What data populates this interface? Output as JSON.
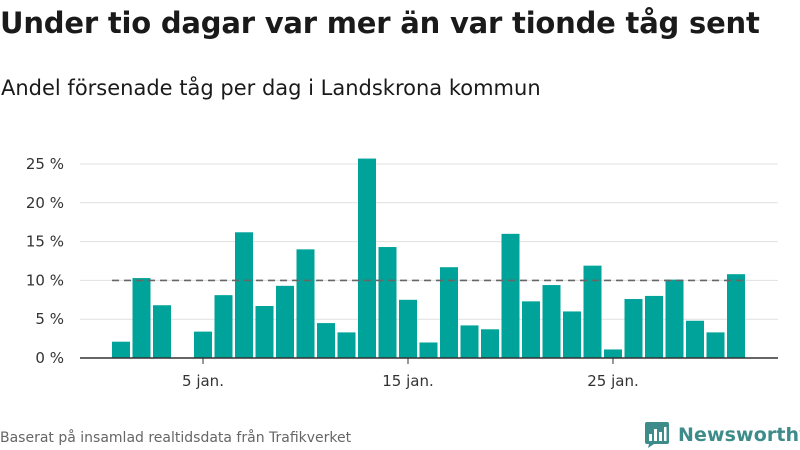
{
  "title": "Under tio dagar var mer än var tionde tåg sent",
  "subtitle": "Andel försenade tåg per dag i Landskrona kommun",
  "footer": "Baserat på insamlad realtidsdata från Trafikverket",
  "brand": "Newsworthy",
  "colors": {
    "bar": "#00a39a",
    "grid": "#e0e0e0",
    "axis": "#333333",
    "reference": "#666666",
    "brand": "#3d8c8a"
  },
  "chart_data": {
    "type": "bar",
    "x": [
      "1 jan.",
      "2 jan.",
      "3 jan.",
      "4 jan.",
      "5 jan.",
      "6 jan.",
      "7 jan.",
      "8 jan.",
      "9 jan.",
      "10 jan.",
      "11 jan.",
      "12 jan.",
      "13 jan.",
      "14 jan.",
      "15 jan.",
      "16 jan.",
      "17 jan.",
      "18 jan.",
      "19 jan.",
      "20 jan.",
      "21 jan.",
      "22 jan.",
      "23 jan.",
      "24 jan.",
      "25 jan.",
      "26 jan.",
      "27 jan.",
      "28 jan.",
      "29 jan.",
      "30 jan.",
      "31 jan."
    ],
    "values": [
      2.1,
      10.3,
      6.8,
      0,
      3.4,
      8.1,
      16.2,
      6.7,
      9.3,
      14.0,
      4.5,
      3.3,
      25.7,
      14.3,
      7.5,
      2.0,
      11.7,
      4.2,
      3.7,
      16.0,
      7.3,
      9.4,
      6.0,
      11.9,
      1.1,
      7.6,
      8.0,
      10.1,
      4.8,
      3.3,
      10.8
    ],
    "reference_line": 10,
    "ylim": [
      0,
      25
    ],
    "yticks": [
      0,
      5,
      10,
      15,
      20,
      25
    ],
    "ytick_labels": [
      "0 %",
      "5 %",
      "10 %",
      "15 %",
      "20 %",
      "25 %"
    ],
    "xticks": [
      "5 jan.",
      "15 jan.",
      "25 jan."
    ],
    "xlabel": "",
    "ylabel": "",
    "grid": true,
    "legend": "none"
  }
}
